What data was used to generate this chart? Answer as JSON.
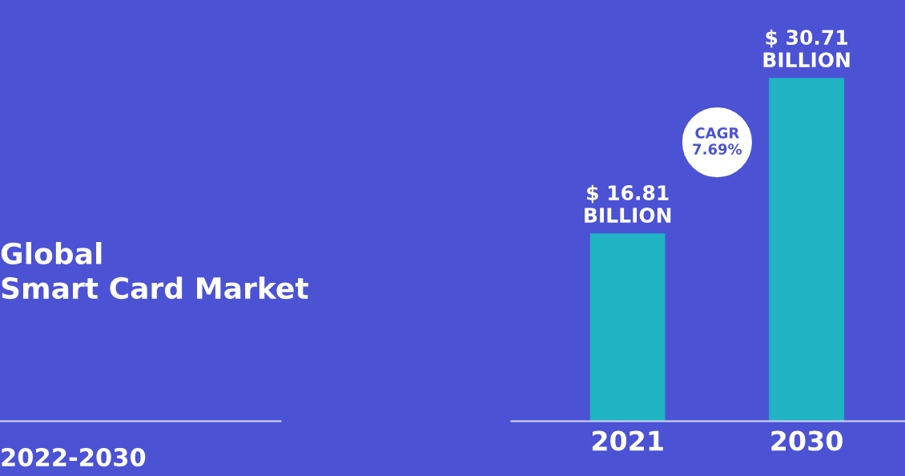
{
  "chart_data": {
    "type": "bar",
    "title": "Global\nSmart Card Market",
    "subtitle": "2022-2030",
    "categories": [
      "2021",
      "2030"
    ],
    "values": [
      16.81,
      30.71
    ],
    "value_labels": [
      "$ 16.81\nBILLION",
      "$ 30.71\nBILLION"
    ],
    "color": "#1fb3c3",
    "annotations": [
      "CAGR\n7.69%"
    ],
    "grid": false,
    "legend": false
  }
}
